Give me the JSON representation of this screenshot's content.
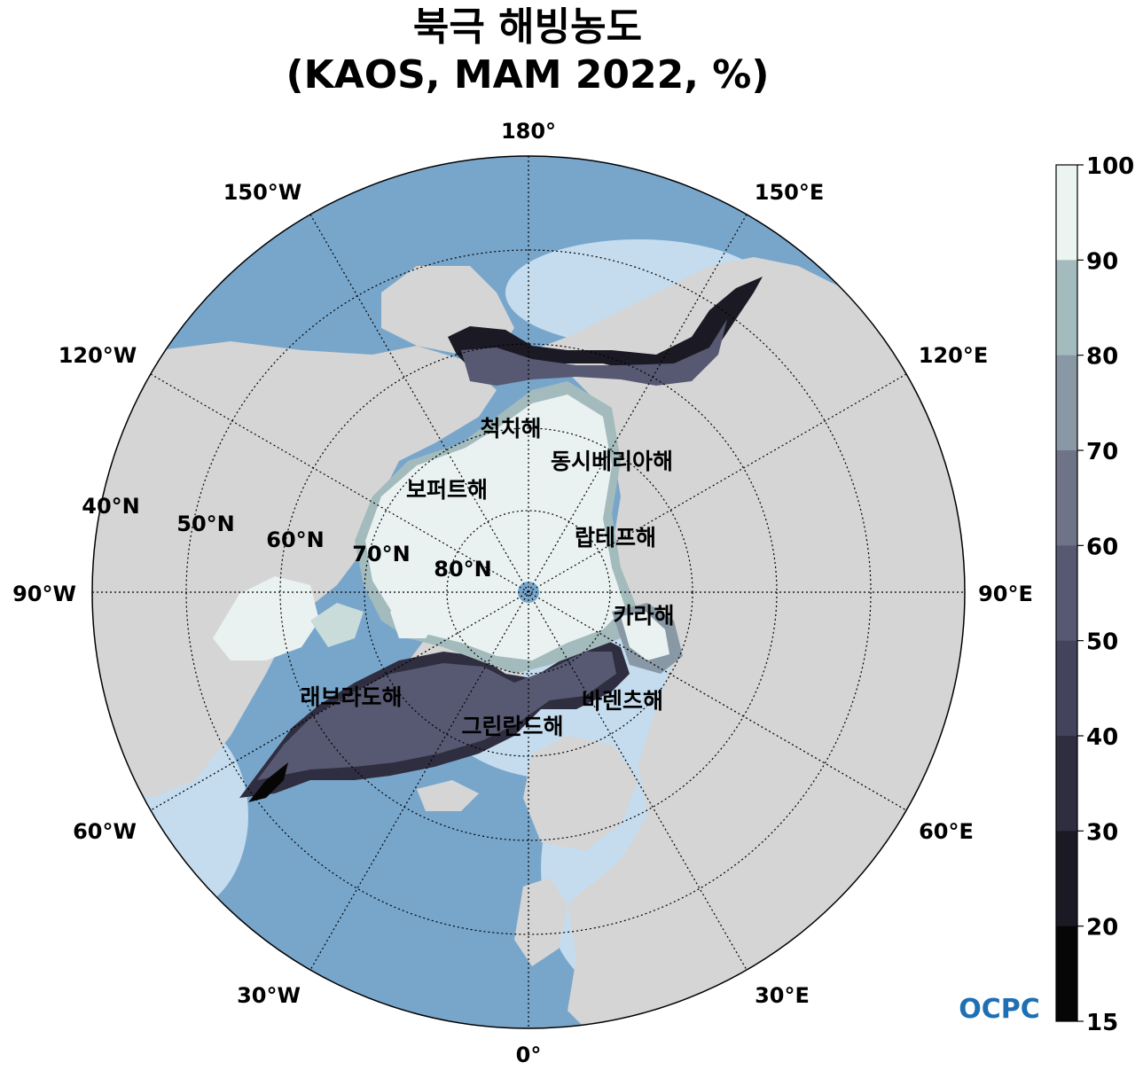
{
  "title": {
    "line1": "북극 해빙농도",
    "line2": "(KAOS, MAM 2022, %)"
  },
  "map": {
    "projection": "north-polar-stereographic",
    "land_color": "#d5d5d5",
    "ocean_color": "#78a6cb",
    "shelf_color": "#c5dcee",
    "ice_color": "#e9f2f1",
    "longitude_labels": [
      "180°",
      "150°E",
      "120°E",
      "90°E",
      "60°E",
      "30°E",
      "0°",
      "30°W",
      "60°W",
      "90°W",
      "120°W",
      "150°W"
    ],
    "latitude_labels": [
      "40°N",
      "50°N",
      "60°N",
      "70°N",
      "80°N"
    ],
    "sea_labels": [
      "척치해",
      "동시베리아해",
      "보퍼트해",
      "랍테프해",
      "카라해",
      "래브라도해",
      "그린란드해",
      "바렌츠해"
    ]
  },
  "colorbar": {
    "ticks": [
      "100",
      "90",
      "80",
      "70",
      "60",
      "50",
      "40",
      "30",
      "20",
      "15"
    ],
    "colors": [
      "#ecf4f2",
      "#c9dcda",
      "#a3bbbc",
      "#8898a4",
      "#6e7388",
      "#575872",
      "#44435c",
      "#2f2d40",
      "#1b1a24",
      "#060606"
    ]
  },
  "logo": {
    "text": "OCPC"
  }
}
